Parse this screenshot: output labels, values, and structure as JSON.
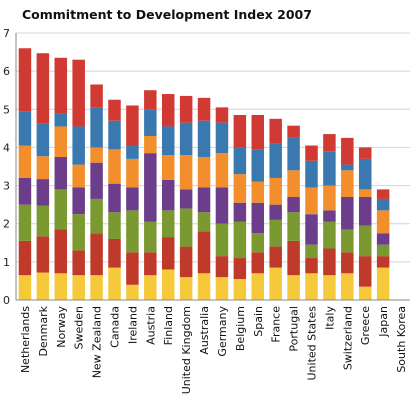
{
  "chart_data": {
    "type": "bar",
    "stacked": true,
    "title": "Commitment to Development Index 2007",
    "xlabel": "",
    "ylabel": "",
    "ylim": [
      0,
      7
    ],
    "yticks": [
      "0",
      "1",
      "2",
      "3",
      "4",
      "5",
      "6",
      "7"
    ],
    "grid": true,
    "legend": "none",
    "categories": [
      "Netherlands",
      "Denmark",
      "Norway",
      "Sweden",
      "New Zealand",
      "Canada",
      "Ireland",
      "Austria",
      "Finland",
      "United Kingdom",
      "Australia",
      "Germany",
      "Belgium",
      "Spain",
      "France",
      "Portugal",
      "United States",
      "Italy",
      "Switzerland",
      "Greece",
      "Japan",
      "South Korea"
    ],
    "series": [
      {
        "color": "#f6c93a",
        "values": [
          0.65,
          0.72,
          0.7,
          0.65,
          0.65,
          0.85,
          0.4,
          0.65,
          0.8,
          0.6,
          0.7,
          0.6,
          0.55,
          0.7,
          0.85,
          0.65,
          0.7,
          0.65,
          0.7,
          0.35,
          0.85,
          0
        ]
      },
      {
        "color": "#c03a2b",
        "values": [
          0.9,
          0.95,
          1.15,
          0.65,
          1.1,
          0.75,
          0.85,
          0.6,
          0.85,
          0.8,
          1.1,
          0.55,
          0.55,
          0.55,
          0.55,
          0.9,
          0.4,
          0.7,
          0.55,
          0.8,
          0.3,
          0
        ]
      },
      {
        "color": "#7a9a31",
        "values": [
          0.95,
          0.8,
          1.05,
          0.95,
          0.9,
          0.7,
          1.1,
          0.8,
          0.7,
          1.0,
          0.5,
          0.85,
          0.95,
          0.5,
          0.7,
          0.75,
          0.35,
          0.7,
          0.6,
          0.8,
          0.3,
          0
        ]
      },
      {
        "color": "#6b3d8a",
        "values": [
          0.7,
          0.7,
          0.85,
          0.7,
          0.95,
          0.75,
          0.6,
          1.8,
          0.8,
          0.5,
          0.65,
          0.95,
          0.5,
          0.8,
          0.4,
          0.4,
          0.8,
          0.3,
          0.85,
          0.75,
          0.3,
          0
        ]
      },
      {
        "color": "#f28e2b",
        "values": [
          0.85,
          0.6,
          0.8,
          0.6,
          0.4,
          0.9,
          0.75,
          0.45,
          0.65,
          0.9,
          0.8,
          0.9,
          0.75,
          0.55,
          0.7,
          0.7,
          0.7,
          0.65,
          0.7,
          0.2,
          0.6,
          0
        ]
      },
      {
        "color": "#3a78b0",
        "values": [
          0.9,
          0.85,
          0.35,
          1.0,
          1.05,
          0.75,
          0.35,
          0.7,
          0.75,
          0.85,
          0.95,
          0.8,
          0.7,
          0.85,
          0.9,
          0.85,
          0.7,
          0.9,
          0.15,
          0.8,
          0.3,
          0
        ]
      },
      {
        "color": "#d13a32",
        "values": [
          1.65,
          1.85,
          1.45,
          1.75,
          0.6,
          0.55,
          1.05,
          0.5,
          0.85,
          0.7,
          0.6,
          0.4,
          0.85,
          0.9,
          0.65,
          0.32,
          0.4,
          0.45,
          0.7,
          0.3,
          0.25,
          0
        ]
      }
    ]
  }
}
